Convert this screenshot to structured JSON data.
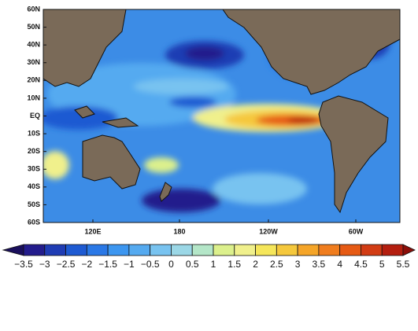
{
  "map": {
    "lat_labels": [
      "60N",
      "50N",
      "40N",
      "30N",
      "20N",
      "10N",
      "EQ",
      "10S",
      "20S",
      "30S",
      "40S",
      "50S",
      "60S"
    ],
    "lon_labels": [
      "120E",
      "180",
      "120W",
      "60W"
    ]
  },
  "colorbar": {
    "labels": [
      "−3.5",
      "−3",
      "−2.5",
      "−2",
      "−1.5",
      "−1",
      "−0.5",
      "0",
      "0.5",
      "1",
      "1.5",
      "2",
      "2.5",
      "3",
      "3.5",
      "4",
      "4.5",
      "5",
      "5.5"
    ]
  }
}
